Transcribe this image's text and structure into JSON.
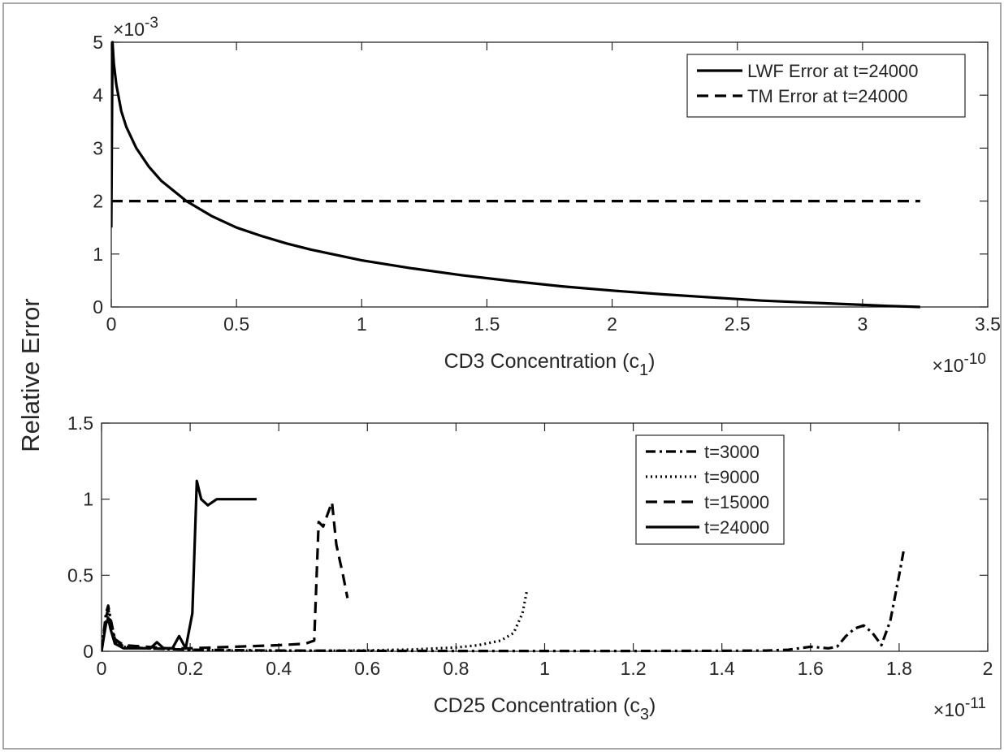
{
  "figure": {
    "ylabel": "Relative Error"
  },
  "chart_data": [
    {
      "type": "line",
      "xlabel": "CD3 Concentration (c",
      "xlabel_sub": "1",
      "xlabel_suffix": ")",
      "x_exponent": "×10",
      "x_exponent_power": "-10",
      "y_exponent": "×10",
      "y_exponent_power": "-3",
      "xlim": [
        0,
        3.5
      ],
      "ylim": [
        0,
        5
      ],
      "xticks": [
        0,
        0.5,
        1,
        1.5,
        2,
        2.5,
        3,
        3.5
      ],
      "xtick_labels": [
        "0",
        "0.5",
        "1",
        "1.5",
        "2",
        "2.5",
        "3",
        "3.5"
      ],
      "yticks": [
        0,
        1,
        2,
        3,
        4,
        5
      ],
      "ytick_labels": [
        "0",
        "1",
        "2",
        "3",
        "4",
        "5"
      ],
      "grid": false,
      "legend_position": "top-right",
      "series": [
        {
          "name": "LWF Error at t=24000",
          "style": "solid",
          "x": [
            0,
            0.005,
            0.01,
            0.02,
            0.04,
            0.06,
            0.1,
            0.15,
            0.2,
            0.3,
            0.4,
            0.5,
            0.6,
            0.7,
            0.8,
            1.0,
            1.2,
            1.4,
            1.6,
            1.8,
            2.0,
            2.2,
            2.4,
            2.6,
            2.8,
            3.0,
            3.1,
            3.23
          ],
          "y": [
            1.5,
            5.0,
            4.6,
            4.2,
            3.7,
            3.4,
            3.0,
            2.65,
            2.38,
            2.0,
            1.72,
            1.5,
            1.34,
            1.2,
            1.08,
            0.88,
            0.73,
            0.6,
            0.49,
            0.39,
            0.31,
            0.24,
            0.18,
            0.12,
            0.08,
            0.04,
            0.02,
            0.0
          ]
        },
        {
          "name": "TM Error at t=24000",
          "style": "dashed",
          "x": [
            0,
            3.23
          ],
          "y": [
            2.0,
            2.0
          ]
        }
      ]
    },
    {
      "type": "line",
      "xlabel": "CD25 Concentration (c",
      "xlabel_sub": "3",
      "xlabel_suffix": ")",
      "x_exponent": "×10",
      "x_exponent_power": "-11",
      "xlim": [
        0,
        2
      ],
      "ylim": [
        0,
        1.5
      ],
      "xticks": [
        0,
        0.2,
        0.4,
        0.6,
        0.8,
        1.0,
        1.2,
        1.4,
        1.6,
        1.8,
        2.0
      ],
      "xtick_labels": [
        "0",
        "0.2",
        "0.4",
        "0.6",
        "0.8",
        "1",
        "1.2",
        "1.4",
        "1.6",
        "1.8",
        "2"
      ],
      "yticks": [
        0,
        0.5,
        1,
        1.5
      ],
      "ytick_labels": [
        "0",
        "0.5",
        "1",
        "1.5"
      ],
      "grid": false,
      "legend_position": "top-right",
      "series": [
        {
          "name": "t=3000",
          "style": "dashdot",
          "x": [
            0,
            0.01,
            0.015,
            0.02,
            0.03,
            0.05,
            0.1,
            0.2,
            0.4,
            0.6,
            0.8,
            1.0,
            1.2,
            1.4,
            1.5,
            1.55,
            1.6,
            1.64,
            1.66,
            1.68,
            1.7,
            1.72,
            1.74,
            1.76,
            1.78,
            1.8,
            1.81
          ],
          "y": [
            0,
            0.25,
            0.3,
            0.22,
            0.08,
            0.03,
            0.02,
            0.01,
            0.005,
            0.003,
            0.002,
            0.002,
            0.002,
            0.003,
            0.005,
            0.01,
            0.03,
            0.02,
            0.03,
            0.1,
            0.15,
            0.17,
            0.12,
            0.04,
            0.2,
            0.5,
            0.66
          ]
        },
        {
          "name": "t=9000",
          "style": "dotted",
          "x": [
            0,
            0.01,
            0.015,
            0.02,
            0.03,
            0.05,
            0.1,
            0.2,
            0.3,
            0.4,
            0.5,
            0.6,
            0.7,
            0.8,
            0.85,
            0.9,
            0.93,
            0.95,
            0.96
          ],
          "y": [
            0,
            0.2,
            0.25,
            0.18,
            0.07,
            0.03,
            0.02,
            0.01,
            0.005,
            0.004,
            0.004,
            0.006,
            0.012,
            0.025,
            0.04,
            0.07,
            0.12,
            0.25,
            0.4
          ]
        },
        {
          "name": "t=15000",
          "style": "dashed",
          "x": [
            0,
            0.01,
            0.015,
            0.02,
            0.03,
            0.05,
            0.1,
            0.15,
            0.2,
            0.3,
            0.4,
            0.46,
            0.48,
            0.49,
            0.5,
            0.51,
            0.52,
            0.53,
            0.545,
            0.555
          ],
          "y": [
            0,
            0.22,
            0.28,
            0.2,
            0.08,
            0.04,
            0.03,
            0.02,
            0.02,
            0.03,
            0.04,
            0.05,
            0.07,
            0.85,
            0.82,
            0.9,
            0.98,
            0.7,
            0.5,
            0.35
          ]
        },
        {
          "name": "t=24000",
          "style": "solid",
          "x": [
            0,
            0.01,
            0.015,
            0.02,
            0.03,
            0.05,
            0.08,
            0.11,
            0.125,
            0.14,
            0.16,
            0.175,
            0.19,
            0.205,
            0.215,
            0.225,
            0.24,
            0.26,
            0.28,
            0.3,
            0.35
          ],
          "y": [
            0,
            0.18,
            0.22,
            0.15,
            0.05,
            0.02,
            0.02,
            0.02,
            0.06,
            0.02,
            0.02,
            0.1,
            0.02,
            0.25,
            1.12,
            1.0,
            0.96,
            1.0,
            1.0,
            1.0,
            1.0
          ]
        }
      ]
    }
  ]
}
